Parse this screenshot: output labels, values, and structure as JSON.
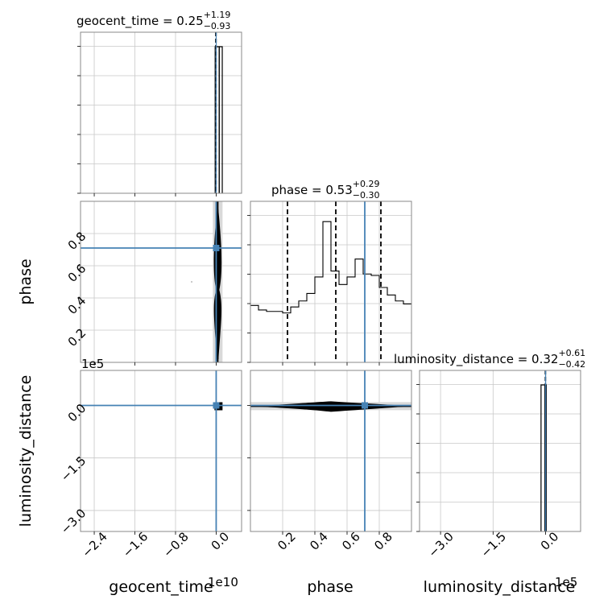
{
  "chart_data": {
    "type": "corner",
    "parameters": [
      "geocent_time",
      "phase",
      "luminosity_distance"
    ],
    "axis_labels": [
      "geocent_time",
      "phase",
      "luminosity_distance"
    ],
    "truths": [
      0.0,
      0.71,
      0.0
    ],
    "truth_color": "#4682b4",
    "titles": [
      {
        "name": "geocent_time",
        "median": "0.25",
        "plus": "+1.19",
        "minus": "−0.93"
      },
      {
        "name": "phase",
        "median": "0.53",
        "plus": "+0.29",
        "minus": "−0.30"
      },
      {
        "name": "luminosity_distance",
        "median": "0.32",
        "plus": "+0.61",
        "minus": "−0.42"
      }
    ],
    "ranges": {
      "geocent_time": [
        -2.67,
        0.5
      ],
      "phase": [
        0.0,
        1.0
      ],
      "luminosity_distance": [
        -3.6,
        1.0
      ]
    },
    "offset_labels": {
      "geocent_time": "1e10",
      "luminosity_distance": "1e5"
    },
    "ticks": {
      "geocent_time": {
        "values": [
          -2.4,
          -1.6,
          -0.8,
          0.0
        ],
        "labels": [
          "−2.4",
          "−1.6",
          "−0.8",
          "0.0"
        ]
      },
      "phase": {
        "values": [
          0.2,
          0.4,
          0.6,
          0.8
        ],
        "labels": [
          "0.2",
          "0.4",
          "0.6",
          "0.8"
        ]
      },
      "luminosity_distance": {
        "values": [
          -3.0,
          -1.5,
          0.0
        ],
        "labels": [
          "−3.0",
          "−1.5",
          "0.0"
        ]
      }
    },
    "histograms": {
      "geocent_time": {
        "bins": [
          [
            -0.02,
            0.06
          ],
          [
            0.06,
            0.12
          ]
        ],
        "heights": [
          1.0,
          1.0
        ],
        "quantiles": [
          -0.01,
          0.0
        ]
      },
      "phase": {
        "bins": [
          0.0,
          0.05,
          0.1,
          0.15,
          0.2,
          0.25,
          0.3,
          0.35,
          0.4,
          0.45,
          0.5,
          0.55,
          0.6,
          0.65,
          0.7,
          0.75,
          0.8,
          0.85,
          0.9,
          0.95,
          1.0
        ],
        "heights": [
          0.38,
          0.35,
          0.34,
          0.34,
          0.33,
          0.37,
          0.41,
          0.46,
          0.57,
          0.94,
          0.61,
          0.52,
          0.57,
          0.69,
          0.59,
          0.58,
          0.5,
          0.45,
          0.41,
          0.39
        ],
        "quantiles": [
          0.23,
          0.53,
          0.81
        ]
      },
      "luminosity_distance": {
        "bins": [
          [
            -0.13,
            -0.02
          ],
          [
            -0.02,
            0.02
          ]
        ],
        "heights": [
          1.0,
          1.0
        ],
        "quantiles": [
          -0.01,
          0.0
        ]
      }
    },
    "grid": true
  }
}
